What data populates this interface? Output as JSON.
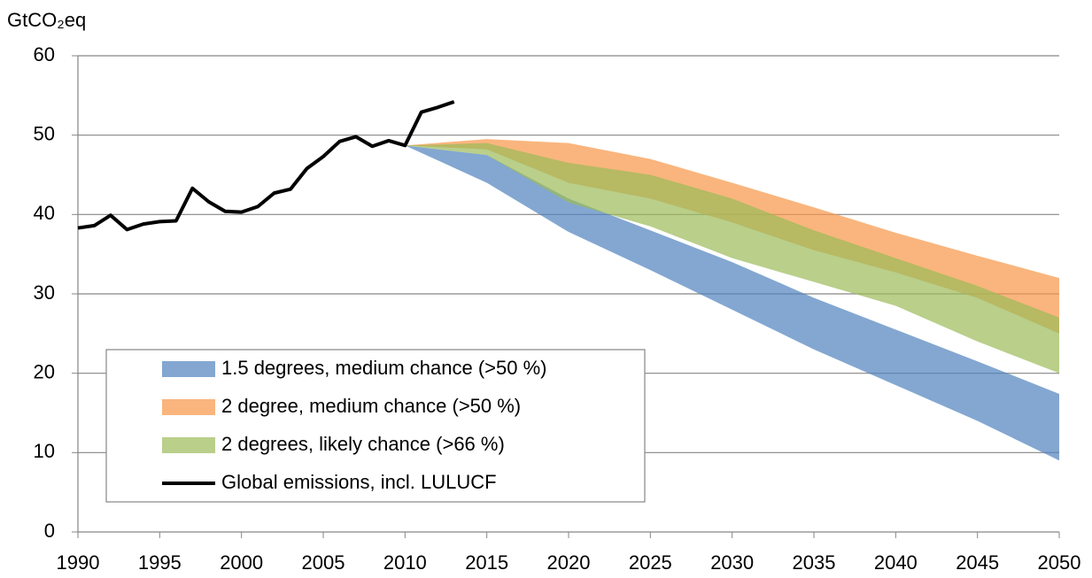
{
  "chart_data": {
    "type": "band",
    "y_label": "GtCO₂eq",
    "xlim": [
      1990,
      2050
    ],
    "xticks": [
      1990,
      1995,
      2000,
      2005,
      2010,
      2015,
      2020,
      2025,
      2030,
      2035,
      2040,
      2045,
      2050
    ],
    "ylim": [
      0,
      60
    ],
    "yticks": [
      0,
      10,
      20,
      30,
      40,
      50,
      60
    ],
    "grid": true,
    "legend": "lower-left",
    "band_x": [
      2010,
      2015,
      2020,
      2025,
      2030,
      2035,
      2040,
      2045,
      2050
    ],
    "bands": [
      {
        "name": "1.5 degrees, medium chance (>50 %)",
        "color": "#4f81bd",
        "low": [
          48.7,
          44,
          37.8,
          33,
          28,
          23,
          18.5,
          14,
          9
        ],
        "high": [
          48.7,
          47.5,
          42,
          38,
          34,
          29.5,
          25.5,
          21.5,
          17.4
        ]
      },
      {
        "name": "2 degree, medium chance (>50 %)",
        "color": "#f79646",
        "low": [
          48.7,
          48.2,
          44,
          42,
          39,
          35.5,
          32.7,
          29.5,
          25
        ],
        "high": [
          48.7,
          49.5,
          49,
          47,
          44,
          40.9,
          37.7,
          34.8,
          32
        ]
      },
      {
        "name": "2 degrees, likely chance (>66 %)",
        "color": "#9bbb59",
        "low": [
          48.7,
          47.5,
          41.5,
          38.5,
          34.5,
          31.5,
          28.5,
          24,
          20
        ],
        "high": [
          48.7,
          49,
          46.5,
          45,
          42,
          38,
          34.5,
          31,
          27
        ]
      }
    ],
    "series": [
      {
        "name": "Global emissions, incl. LULUCF",
        "color": "#000000",
        "x": [
          1990,
          1991,
          1992,
          1993,
          1994,
          1995,
          1996,
          1997,
          1998,
          1999,
          2000,
          2001,
          2002,
          2003,
          2004,
          2005,
          2006,
          2007,
          2008,
          2009,
          2010,
          2011,
          2012,
          2013
        ],
        "values": [
          38.3,
          38.6,
          39.9,
          38.1,
          38.8,
          39.1,
          39.2,
          43.3,
          41.6,
          40.4,
          40.3,
          41.0,
          42.7,
          43.2,
          45.8,
          47.3,
          49.2,
          49.8,
          48.6,
          49.3,
          48.7,
          52.9,
          53.5,
          54.2
        ]
      }
    ]
  }
}
